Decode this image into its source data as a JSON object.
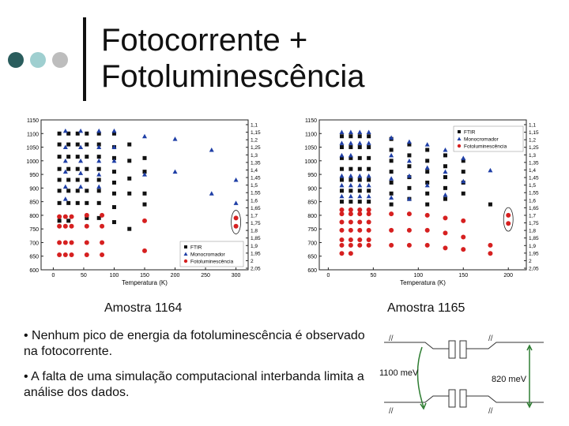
{
  "slide": {
    "title_line1": "Fotocorrente +",
    "title_line2": "Fotoluminescência",
    "accent_colors": [
      "#2a5d5d",
      "#9fcfd0",
      "#bdbdbd"
    ]
  },
  "captions": {
    "left": "Amostra 1164",
    "right": "Amostra 1165"
  },
  "bullets": [
    "• Nenhum pico de energia da fotoluminescência é observado na fotocorrente.",
    "• A falta de uma simulação computacional interbanda limita a análise dos dados."
  ],
  "band_diagram": {
    "left_label": "1100 meV",
    "right_label": "820 meV"
  },
  "chart_data": [
    {
      "type": "scatter",
      "xlabel": "Temperatura (K)",
      "ylabel": "",
      "xlim": [
        -20,
        320
      ],
      "ylim": [
        600,
        1150
      ],
      "xticks": [
        0,
        50,
        100,
        150,
        200,
        250,
        300
      ],
      "yticks": [
        600,
        650,
        700,
        750,
        800,
        850,
        900,
        950,
        1000,
        1050,
        1100,
        1150
      ],
      "y2_tick_labels": [
        "1,1",
        "1,15",
        "1,2",
        "1,25",
        "1,3",
        "1,35",
        "1,4",
        "1,45",
        "1,5",
        "1,55",
        "1,6",
        "1,65",
        "1,7",
        "1,75",
        "1,8",
        "1,85",
        "1,9",
        "1,95",
        "2",
        "2,05"
      ],
      "legend_position": "bottom-right",
      "series": [
        {
          "name": "FTIR",
          "marker": "square",
          "color": "#111111",
          "points": [
            [
              10,
              1100
            ],
            [
              10,
              1060
            ],
            [
              10,
              1015
            ],
            [
              10,
              970
            ],
            [
              10,
              930
            ],
            [
              10,
              890
            ],
            [
              10,
              845
            ],
            [
              10,
              780
            ],
            [
              25,
              1100
            ],
            [
              25,
              1060
            ],
            [
              25,
              1015
            ],
            [
              25,
              970
            ],
            [
              25,
              930
            ],
            [
              25,
              890
            ],
            [
              25,
              845
            ],
            [
              25,
              780
            ],
            [
              40,
              1100
            ],
            [
              40,
              1060
            ],
            [
              40,
              1015
            ],
            [
              40,
              970
            ],
            [
              40,
              930
            ],
            [
              40,
              890
            ],
            [
              40,
              845
            ],
            [
              55,
              1100
            ],
            [
              55,
              1060
            ],
            [
              55,
              1015
            ],
            [
              55,
              970
            ],
            [
              55,
              930
            ],
            [
              55,
              890
            ],
            [
              55,
              845
            ],
            [
              55,
              790
            ],
            [
              75,
              1100
            ],
            [
              75,
              1060
            ],
            [
              75,
              1015
            ],
            [
              75,
              970
            ],
            [
              75,
              930
            ],
            [
              75,
              890
            ],
            [
              75,
              845
            ],
            [
              75,
              790
            ],
            [
              100,
              1100
            ],
            [
              100,
              1050
            ],
            [
              100,
              1010
            ],
            [
              100,
              960
            ],
            [
              100,
              920
            ],
            [
              100,
              880
            ],
            [
              100,
              830
            ],
            [
              100,
              775
            ],
            [
              125,
              1060
            ],
            [
              125,
              1000
            ],
            [
              125,
              935
            ],
            [
              125,
              880
            ],
            [
              125,
              750
            ],
            [
              150,
              1010
            ],
            [
              150,
              960
            ],
            [
              150,
              880
            ],
            [
              150,
              840
            ]
          ]
        },
        {
          "name": "Monocromador",
          "marker": "triangle",
          "color": "#1f3fa6",
          "points": [
            [
              20,
              1110
            ],
            [
              20,
              1050
            ],
            [
              20,
              1000
            ],
            [
              20,
              960
            ],
            [
              20,
              905
            ],
            [
              20,
              860
            ],
            [
              45,
              1110
            ],
            [
              45,
              1050
            ],
            [
              45,
              1000
            ],
            [
              45,
              955
            ],
            [
              45,
              905
            ],
            [
              75,
              1110
            ],
            [
              75,
              1050
            ],
            [
              75,
              1000
            ],
            [
              75,
              950
            ],
            [
              75,
              905
            ],
            [
              100,
              1110
            ],
            [
              100,
              1050
            ],
            [
              100,
              1000
            ],
            [
              150,
              1090
            ],
            [
              150,
              950
            ],
            [
              200,
              1080
            ],
            [
              200,
              960
            ],
            [
              260,
              1040
            ],
            [
              260,
              880
            ],
            [
              300,
              930
            ],
            [
              300,
              845
            ]
          ]
        },
        {
          "name": "Fotoluminescência",
          "marker": "circle",
          "color": "#d62020",
          "points": [
            [
              10,
              795
            ],
            [
              10,
              760
            ],
            [
              10,
              700
            ],
            [
              10,
              655
            ],
            [
              20,
              795
            ],
            [
              20,
              760
            ],
            [
              20,
              700
            ],
            [
              20,
              655
            ],
            [
              30,
              795
            ],
            [
              30,
              760
            ],
            [
              30,
              700
            ],
            [
              30,
              655
            ],
            [
              55,
              800
            ],
            [
              55,
              760
            ],
            [
              55,
              700
            ],
            [
              55,
              655
            ],
            [
              80,
              800
            ],
            [
              80,
              760
            ],
            [
              80,
              700
            ],
            [
              80,
              655
            ],
            [
              150,
              780
            ],
            [
              150,
              670
            ],
            [
              300,
              790
            ],
            [
              300,
              760
            ]
          ]
        }
      ]
    },
    {
      "type": "scatter",
      "xlabel": "Temperatura (K)",
      "ylabel": "",
      "xlim": [
        -10,
        220
      ],
      "ylim": [
        600,
        1150
      ],
      "xticks": [
        0,
        50,
        100,
        150,
        200
      ],
      "yticks": [
        600,
        650,
        700,
        750,
        800,
        850,
        900,
        950,
        1000,
        1050,
        1100,
        1150
      ],
      "y2_tick_labels": [
        "1,1",
        "1,15",
        "1,2",
        "1,25",
        "1,3",
        "1,35",
        "1,4",
        "1,45",
        "1,5",
        "1,55",
        "1,6",
        "1,65",
        "1,7",
        "1,75",
        "1,8",
        "1,85",
        "1,9",
        "1,95",
        "2",
        "2,05"
      ],
      "legend_position": "top-right",
      "series": [
        {
          "name": "FTIR",
          "marker": "square",
          "color": "#111111",
          "points": [
            [
              15,
              1090
            ],
            [
              15,
              1050
            ],
            [
              15,
              1010
            ],
            [
              15,
              970
            ],
            [
              15,
              930
            ],
            [
              15,
              890
            ],
            [
              15,
              850
            ],
            [
              25,
              1090
            ],
            [
              25,
              1050
            ],
            [
              25,
              1010
            ],
            [
              25,
              970
            ],
            [
              25,
              930
            ],
            [
              25,
              890
            ],
            [
              25,
              850
            ],
            [
              35,
              1090
            ],
            [
              35,
              1050
            ],
            [
              35,
              1010
            ],
            [
              35,
              970
            ],
            [
              35,
              930
            ],
            [
              35,
              890
            ],
            [
              35,
              850
            ],
            [
              45,
              1090
            ],
            [
              45,
              1050
            ],
            [
              45,
              1010
            ],
            [
              45,
              970
            ],
            [
              45,
              930
            ],
            [
              45,
              890
            ],
            [
              45,
              850
            ],
            [
              70,
              1080
            ],
            [
              70,
              1040
            ],
            [
              70,
              1000
            ],
            [
              70,
              960
            ],
            [
              70,
              920
            ],
            [
              70,
              880
            ],
            [
              70,
              840
            ],
            [
              90,
              1060
            ],
            [
              90,
              1020
            ],
            [
              90,
              980
            ],
            [
              90,
              940
            ],
            [
              90,
              900
            ],
            [
              90,
              860
            ],
            [
              110,
              1040
            ],
            [
              110,
              1000
            ],
            [
              110,
              960
            ],
            [
              110,
              920
            ],
            [
              110,
              880
            ],
            [
              110,
              840
            ],
            [
              130,
              1020
            ],
            [
              130,
              980
            ],
            [
              130,
              940
            ],
            [
              130,
              900
            ],
            [
              130,
              860
            ],
            [
              150,
              1000
            ],
            [
              150,
              960
            ],
            [
              150,
              920
            ],
            [
              150,
              880
            ],
            [
              180,
              840
            ]
          ]
        },
        {
          "name": "Monocromador",
          "marker": "triangle",
          "color": "#1f3fa6",
          "points": [
            [
              15,
              1105
            ],
            [
              15,
              1065
            ],
            [
              15,
              1020
            ],
            [
              15,
              945
            ],
            [
              15,
              910
            ],
            [
              15,
              870
            ],
            [
              25,
              1105
            ],
            [
              25,
              1065
            ],
            [
              25,
              1020
            ],
            [
              25,
              945
            ],
            [
              25,
              910
            ],
            [
              25,
              870
            ],
            [
              35,
              1105
            ],
            [
              35,
              1065
            ],
            [
              35,
              945
            ],
            [
              35,
              910
            ],
            [
              35,
              870
            ],
            [
              45,
              1105
            ],
            [
              45,
              1065
            ],
            [
              45,
              945
            ],
            [
              45,
              910
            ],
            [
              45,
              870
            ],
            [
              70,
              1085
            ],
            [
              70,
              1020
            ],
            [
              70,
              935
            ],
            [
              70,
              865
            ],
            [
              90,
              1070
            ],
            [
              90,
              1000
            ],
            [
              90,
              945
            ],
            [
              90,
              860
            ],
            [
              110,
              1060
            ],
            [
              110,
              975
            ],
            [
              110,
              910
            ],
            [
              130,
              1040
            ],
            [
              130,
              960
            ],
            [
              130,
              875
            ],
            [
              150,
              1010
            ],
            [
              150,
              925
            ],
            [
              180,
              965
            ]
          ]
        },
        {
          "name": "Fotoluminescência",
          "marker": "circle",
          "color": "#d62020",
          "points": [
            [
              15,
              820
            ],
            [
              15,
              805
            ],
            [
              15,
              775
            ],
            [
              15,
              745
            ],
            [
              15,
              710
            ],
            [
              15,
              690
            ],
            [
              15,
              660
            ],
            [
              25,
              820
            ],
            [
              25,
              805
            ],
            [
              25,
              775
            ],
            [
              25,
              745
            ],
            [
              25,
              710
            ],
            [
              25,
              690
            ],
            [
              25,
              660
            ],
            [
              35,
              820
            ],
            [
              35,
              805
            ],
            [
              35,
              775
            ],
            [
              35,
              745
            ],
            [
              35,
              710
            ],
            [
              35,
              690
            ],
            [
              45,
              820
            ],
            [
              45,
              805
            ],
            [
              45,
              775
            ],
            [
              45,
              745
            ],
            [
              45,
              710
            ],
            [
              45,
              690
            ],
            [
              70,
              805
            ],
            [
              70,
              745
            ],
            [
              70,
              690
            ],
            [
              90,
              805
            ],
            [
              90,
              745
            ],
            [
              90,
              690
            ],
            [
              110,
              800
            ],
            [
              110,
              745
            ],
            [
              110,
              690
            ],
            [
              130,
              790
            ],
            [
              130,
              735
            ],
            [
              130,
              680
            ],
            [
              150,
              780
            ],
            [
              150,
              720
            ],
            [
              150,
              675
            ],
            [
              180,
              690
            ],
            [
              180,
              660
            ],
            [
              200,
              800
            ],
            [
              200,
              770
            ]
          ]
        }
      ]
    }
  ]
}
